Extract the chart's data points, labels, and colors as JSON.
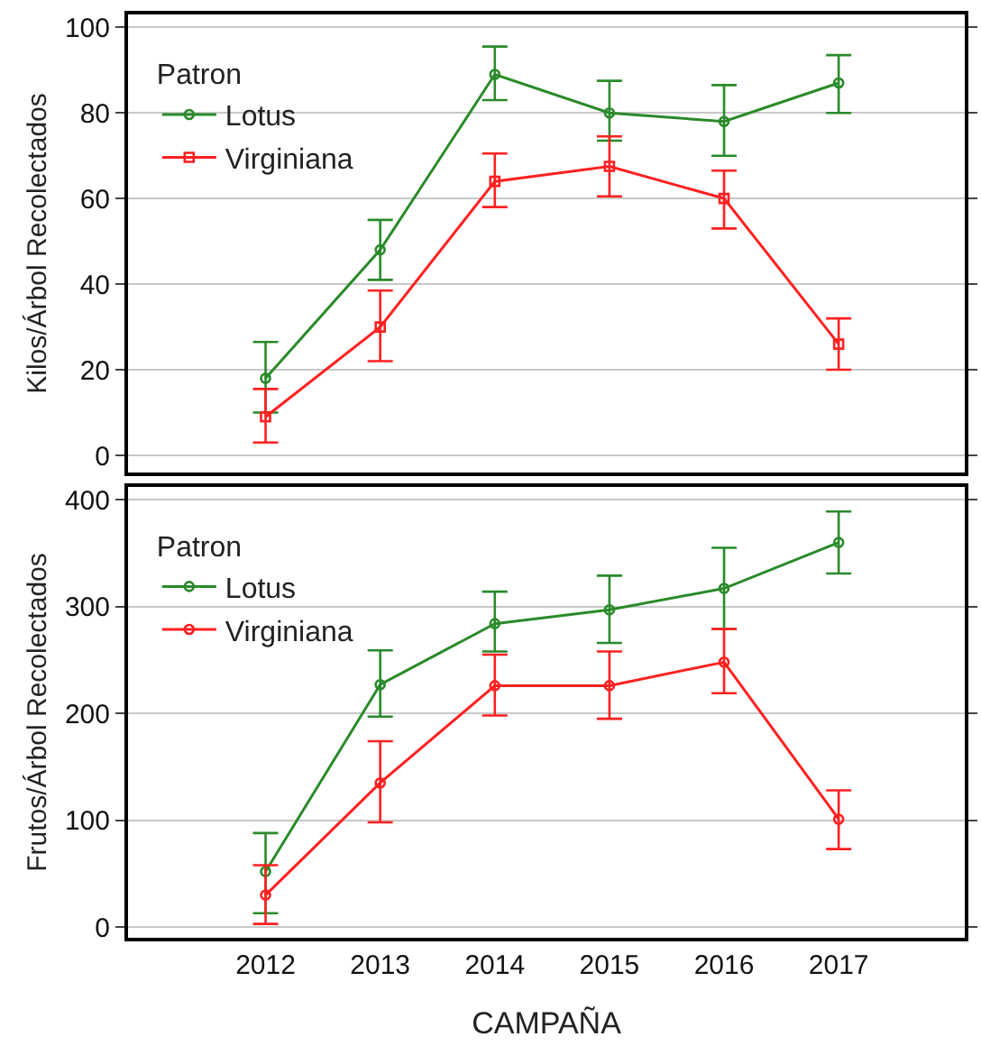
{
  "chart_data": [
    {
      "type": "line",
      "ylabel": "Kilos/Árbol Recolectados",
      "categories": [
        "2012",
        "2013",
        "2014",
        "2015",
        "2016",
        "2017"
      ],
      "ylim": [
        -4,
        103
      ],
      "yticks": [
        0,
        20,
        40,
        60,
        80,
        100
      ],
      "grid": "y",
      "legend": "top left",
      "legend_title": "Patron",
      "tick_labels": "y",
      "series": [
        {
          "name": "Lotus",
          "color": "#2a8a2a",
          "marker": "circle",
          "values": [
            18,
            48,
            89,
            80,
            78,
            87
          ],
          "errors": [
            [
              10,
              26.5
            ],
            [
              41,
              55
            ],
            [
              83,
              95.5
            ],
            [
              73.5,
              87.5
            ],
            [
              70,
              86.5
            ],
            [
              80,
              93.5
            ]
          ]
        },
        {
          "name": "Virginiana",
          "color": "#ff2020",
          "marker": "square",
          "values": [
            9,
            30,
            64,
            67.5,
            60,
            26
          ],
          "errors": [
            [
              3,
              15.5
            ],
            [
              22,
              38.5
            ],
            [
              58,
              70.5
            ],
            [
              60.5,
              74.5
            ],
            [
              53,
              66.5
            ],
            [
              20,
              32
            ]
          ]
        }
      ]
    },
    {
      "type": "line",
      "ylabel": "Frutos/Árbol Recolectados",
      "xlabel": "CAMPAÑA",
      "categories": [
        "2012",
        "2013",
        "2014",
        "2015",
        "2016",
        "2017"
      ],
      "ylim": [
        -10,
        412
      ],
      "yticks": [
        0,
        100,
        200,
        300,
        400
      ],
      "grid": "y",
      "legend": "top left",
      "legend_title": "Patron",
      "series": [
        {
          "name": "Lotus",
          "color": "#2a8a2a",
          "marker": "circle",
          "values": [
            52,
            227,
            284,
            297,
            317,
            360
          ],
          "errors": [
            [
              13,
              88
            ],
            [
              197,
              259
            ],
            [
              258,
              314
            ],
            [
              266,
              329
            ],
            [
              279,
              355
            ],
            [
              331,
              389
            ]
          ]
        },
        {
          "name": "Virginiana",
          "color": "#ff2020",
          "marker": "circle",
          "values": [
            30,
            135,
            226,
            226,
            248,
            101
          ],
          "errors": [
            [
              3,
              58
            ],
            [
              98,
              174
            ],
            [
              198,
              255
            ],
            [
              195,
              258
            ],
            [
              219,
              279
            ],
            [
              73,
              128
            ]
          ]
        }
      ]
    }
  ]
}
